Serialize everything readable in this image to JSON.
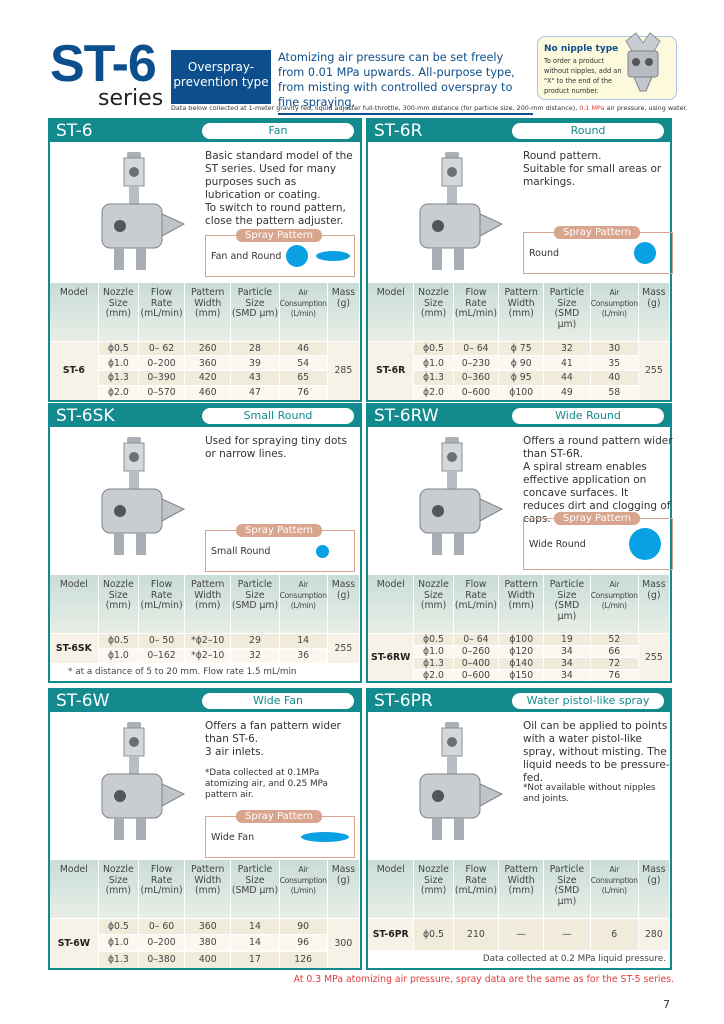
{
  "header": {
    "logo_main": "ST-6",
    "logo_series": "series",
    "type_label": "Overspray-\nprevention type",
    "intro": "Atomizing air pressure can be set freely from 0.01 MPa upwards. All-purpose type, from misting with controlled overspray to fine spraying.",
    "nipple_title": "No nipple type",
    "nipple_desc": "To order a product without nipples, add an \"X\" to the end of the product number.",
    "collect_pre": "Data below collected at 1-meter gravity fed, liquid adjuster full-throttle, 300-mm distance (for particle size, 200-mm distance), ",
    "collect_red": "0.1 MPa",
    "collect_post": " air pressure, using water."
  },
  "colors": {
    "teal": "#128a8e",
    "navy": "#0d4f8c",
    "spray_blue": "#0aa0e4",
    "spray_label": "#d9a58e",
    "red_note": "#e03a3a"
  },
  "table_headers": [
    "Model",
    "Nozzle\nSize\n(mm)",
    "Flow\nRate\n(mL/min)",
    "Pattern\nWidth\n(mm)",
    "Particle\nSize\n(SMD μm)",
    "Air\nConsumption\n(L/min)",
    "Mass\n(g)"
  ],
  "spray_pattern_label": "Spray Pattern",
  "panels": [
    {
      "name": "ST-6",
      "type": "Fan",
      "icon": "spray-gun-icon",
      "desc": "Basic standard model of the ST series. Used for many purposes such as lubrication or coating.\nTo switch to round pattern, close the pattern adjuster.",
      "pattern_text": "Fan and Round",
      "pattern_shapes": [
        "round",
        "fan"
      ],
      "model": "ST-6",
      "mass": "285",
      "rows": [
        [
          "ϕ0.5",
          "0– 62",
          "260",
          "28",
          "46"
        ],
        [
          "ϕ1.0",
          "0–200",
          "360",
          "39",
          "54"
        ],
        [
          "ϕ1.3",
          "0–390",
          "420",
          "43",
          "65"
        ],
        [
          "ϕ2.0",
          "0–570",
          "460",
          "47",
          "76"
        ]
      ]
    },
    {
      "name": "ST-6R",
      "type": "Round",
      "icon": "spray-gun-icon",
      "desc": "Round pattern.\nSuitable for small areas or markings.",
      "pattern_text": "Round",
      "pattern_shapes": [
        "round"
      ],
      "model": "ST-6R",
      "mass": "255",
      "rows": [
        [
          "ϕ0.5",
          "0– 64",
          "ϕ  75",
          "32",
          "30"
        ],
        [
          "ϕ1.0",
          "0–230",
          "ϕ  90",
          "41",
          "35"
        ],
        [
          "ϕ1.3",
          "0–360",
          "ϕ  95",
          "44",
          "40"
        ],
        [
          "ϕ2.0",
          "0–600",
          "ϕ100",
          "49",
          "58"
        ]
      ]
    },
    {
      "name": "ST-6SK",
      "type": "Small Round",
      "icon": "spray-gun-icon",
      "desc": "Used for spraying tiny dots or narrow lines.",
      "pattern_text": "Small Round",
      "pattern_shapes": [
        "small-round"
      ],
      "model": "ST-6SK",
      "mass": "255",
      "rows": [
        [
          "ϕ0.5",
          "0– 50",
          "*ϕ2–10",
          "29",
          "14"
        ],
        [
          "ϕ1.0",
          "0–162",
          "*ϕ2–10",
          "32",
          "36"
        ]
      ],
      "footnote": "* at a distance of 5 to 20 mm. Flow rate 1.5 mL/min"
    },
    {
      "name": "ST-6RW",
      "type": "Wide Round",
      "icon": "spray-gun-icon",
      "desc": "Offers a round pattern wider than ST-6R.\nA spiral stream enables effective application on concave surfaces. It reduces dirt and clogging of caps.",
      "pattern_text": "Wide Round",
      "pattern_shapes": [
        "wide-round"
      ],
      "model": "ST-6RW",
      "mass": "255",
      "rows": [
        [
          "ϕ0.5",
          "0– 64",
          "ϕ100",
          "19",
          "52"
        ],
        [
          "ϕ1.0",
          "0–260",
          "ϕ120",
          "34",
          "66"
        ],
        [
          "ϕ1.3",
          "0–400",
          "ϕ140",
          "34",
          "72"
        ],
        [
          "ϕ2.0",
          "0–600",
          "ϕ150",
          "34",
          "76"
        ]
      ]
    },
    {
      "name": "ST-6W",
      "type": "Wide Fan",
      "icon": "spray-gun-icon",
      "desc": "Offers a fan pattern wider than ST-6.\n3 air inlets.",
      "note": "*Data collected at 0.1MPa\n atomizing air, and 0.25 MPa\n pattern air.",
      "pattern_text": "Wide Fan",
      "pattern_shapes": [
        "wide-fan"
      ],
      "model": "ST-6W",
      "mass": "300",
      "rows": [
        [
          "ϕ0.5",
          "0– 60",
          "360",
          "14",
          "90"
        ],
        [
          "ϕ1.0",
          "0–200",
          "380",
          "14",
          "96"
        ],
        [
          "ϕ1.3",
          "0–380",
          "400",
          "17",
          "126"
        ]
      ]
    },
    {
      "name": "ST-6PR",
      "type": "Water pistol-like spray",
      "icon": "spray-gun-icon",
      "desc": "Oil can be applied to points with a water pistol-like spray, without misting. The liquid needs to be pressure-fed.",
      "note": "*Not available without nipples\n and joints.",
      "model": "ST-6PR",
      "mass": "280",
      "rows": [
        [
          "ϕ0.5",
          "210",
          "—",
          "—",
          "6"
        ]
      ],
      "footnote": "Data collected at 0.2 MPa liquid pressure."
    }
  ],
  "bottom_note": "At 0.3 MPa atomizing air pressure, spray data are the same as for the ST-5 series.",
  "page_number": "7"
}
